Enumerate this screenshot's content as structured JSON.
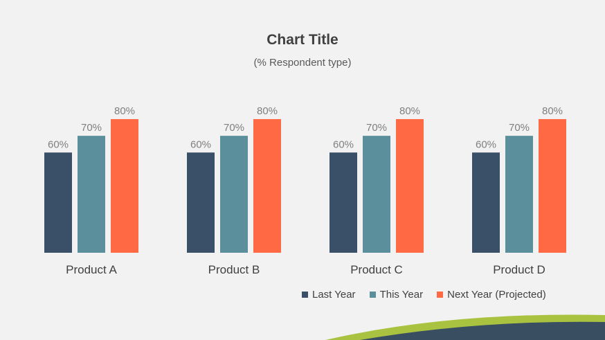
{
  "chart_data": {
    "type": "bar",
    "title": "Chart Title",
    "subtitle": "(% Respondent type)",
    "categories": [
      "Product A",
      "Product B",
      "Product C",
      "Product D"
    ],
    "series": [
      {
        "name": "Last Year",
        "values": [
          60,
          60,
          60,
          60
        ],
        "color": "#3a5068",
        "labels": [
          "60%",
          "60%",
          "60%",
          "60%"
        ]
      },
      {
        "name": "This Year",
        "values": [
          70,
          70,
          70,
          70
        ],
        "color": "#5b8f9c",
        "labels": [
          "70%",
          "70%",
          "70%",
          "70%"
        ]
      },
      {
        "name": "Next Year (Projected)",
        "values": [
          80,
          80,
          80,
          80
        ],
        "color": "#ff6a45",
        "labels": [
          "80%",
          "80%",
          "80%",
          "80%"
        ]
      }
    ],
    "ylim": [
      0,
      80
    ],
    "grid": false,
    "legend_position": "bottom-right"
  },
  "theme": {
    "label_color": "#7f7f7f",
    "category_color": "#404040",
    "wave_green": "#a9c23f",
    "wave_navy": "#3a4e62"
  }
}
